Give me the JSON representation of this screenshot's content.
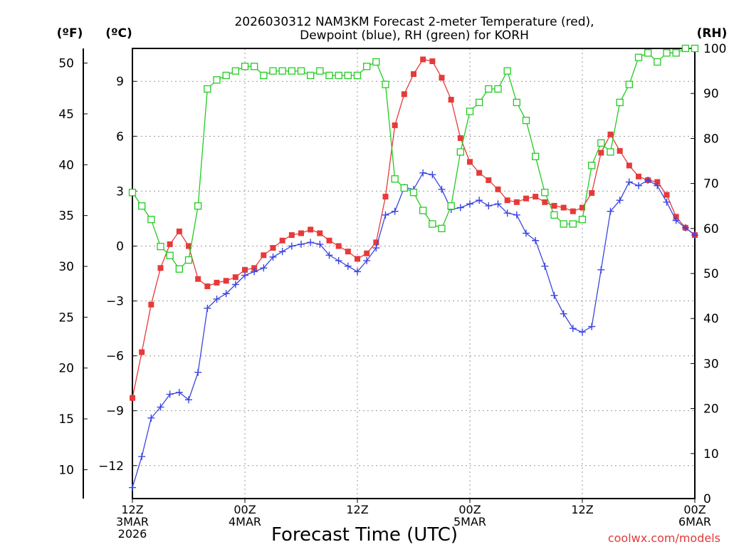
{
  "chart_data": {
    "type": "line",
    "title_line1": "2026030312 NAM3KM Forecast 2-meter Temperature (red),",
    "title_line2": "Dewpoint (blue), RH (green) for KORH",
    "xlabel": "Forecast Time (UTC)",
    "credit": "coolwx.com/models",
    "units": {
      "fahrenheit": "(ºF)",
      "celsius": "(ºC)",
      "rh": "(RH)"
    },
    "x_ticks": [
      {
        "hour": 0,
        "lines": [
          "12Z",
          "3MAR",
          "2026"
        ]
      },
      {
        "hour": 12,
        "lines": [
          "00Z",
          "4MAR"
        ]
      },
      {
        "hour": 24,
        "lines": [
          "12Z"
        ]
      },
      {
        "hour": 36,
        "lines": [
          "00Z",
          "5MAR"
        ]
      },
      {
        "hour": 48,
        "lines": [
          "12Z"
        ]
      },
      {
        "hour": 60,
        "lines": [
          "00Z",
          "6MAR"
        ]
      }
    ],
    "x_range_hours": [
      0,
      60
    ],
    "y_celsius_range": [
      -13.8,
      10.8
    ],
    "y_celsius_ticks": [
      -12,
      -9,
      -6,
      -3,
      0,
      3,
      6,
      9
    ],
    "y_fahrenheit_ticks": [
      10,
      15,
      20,
      25,
      30,
      35,
      40,
      45,
      50
    ],
    "y_rh_range": [
      0,
      100
    ],
    "y_rh_ticks": [
      0,
      10,
      20,
      30,
      40,
      50,
      60,
      70,
      80,
      90,
      100
    ],
    "grid": true,
    "series": [
      {
        "name": "Temperature",
        "unit": "C",
        "color": "#e63a3a",
        "marker": "filled-square",
        "values": [
          -8.3,
          -5.8,
          -3.2,
          -1.2,
          0.1,
          0.8,
          0.0,
          -1.8,
          -2.2,
          -2.0,
          -1.9,
          -1.7,
          -1.3,
          -1.2,
          -0.5,
          -0.1,
          0.3,
          0.6,
          0.7,
          0.9,
          0.7,
          0.3,
          0.0,
          -0.3,
          -0.7,
          -0.4,
          0.2,
          2.7,
          6.6,
          8.3,
          9.4,
          10.2,
          10.1,
          9.2,
          8.0,
          5.9,
          4.6,
          4.0,
          3.6,
          3.1,
          2.5,
          2.4,
          2.6,
          2.7,
          2.4,
          2.2,
          2.1,
          1.9,
          2.1,
          2.9,
          5.1,
          6.1,
          5.2,
          4.4,
          3.8,
          3.6,
          3.5,
          2.8,
          1.6,
          1.0,
          0.6
        ]
      },
      {
        "name": "Dewpoint",
        "unit": "C",
        "color": "#3a45e0",
        "marker": "plus",
        "values": [
          -13.2,
          -11.5,
          -9.4,
          -8.8,
          -8.1,
          -8.0,
          -8.4,
          -6.9,
          -3.4,
          -2.9,
          -2.6,
          -2.1,
          -1.6,
          -1.4,
          -1.2,
          -0.6,
          -0.3,
          0.0,
          0.1,
          0.2,
          0.1,
          -0.5,
          -0.8,
          -1.1,
          -1.4,
          -0.8,
          -0.1,
          1.7,
          1.9,
          3.2,
          3.1,
          4.0,
          3.9,
          3.1,
          2.0,
          2.1,
          2.3,
          2.5,
          2.2,
          2.3,
          1.8,
          1.7,
          0.7,
          0.3,
          -1.1,
          -2.7,
          -3.7,
          -4.5,
          -4.7,
          -4.4,
          -1.3,
          1.9,
          2.5,
          3.5,
          3.3,
          3.6,
          3.3,
          2.4,
          1.4,
          1.0,
          0.6
        ]
      },
      {
        "name": "RH",
        "unit": "%",
        "color": "#22cc22",
        "marker": "open-square",
        "values": [
          68,
          65,
          62,
          56,
          54,
          51,
          53,
          65,
          91,
          93,
          94,
          95,
          96,
          96,
          94,
          95,
          95,
          95,
          95,
          94,
          95,
          94,
          94,
          94,
          94,
          96,
          97,
          92,
          71,
          69,
          68,
          64,
          61,
          60,
          65,
          77,
          86,
          88,
          91,
          91,
          95,
          88,
          84,
          76,
          68,
          63,
          61,
          61,
          62,
          74,
          79,
          77,
          88,
          92,
          98,
          99,
          97,
          99,
          99,
          100,
          100
        ]
      }
    ]
  }
}
